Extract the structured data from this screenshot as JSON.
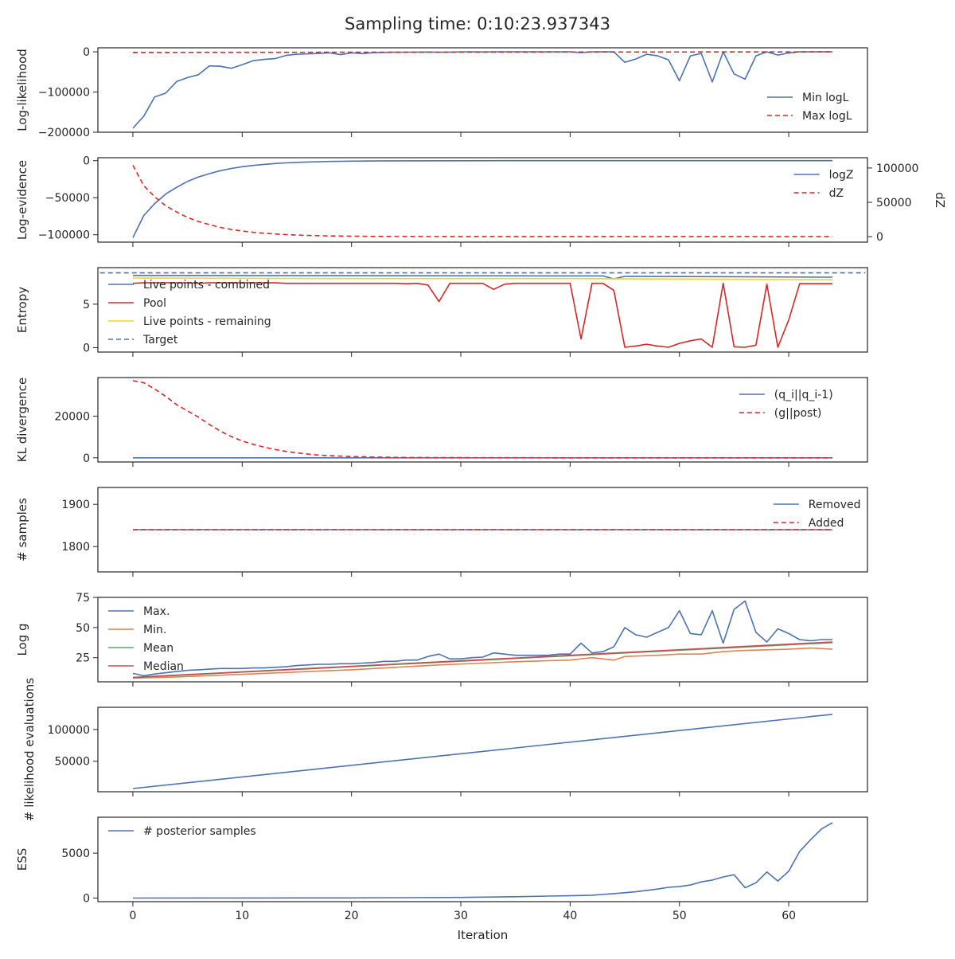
{
  "title": "Sampling time: 0:10:23.937343",
  "xlabel": "Iteration",
  "x_ticks": [
    0,
    10,
    20,
    30,
    40,
    50,
    60
  ],
  "colors": {
    "blue": "#4c72b0",
    "red": "#d62728",
    "orange": "#dd8452",
    "green": "#55a868",
    "crimson": "#c44e52",
    "gold": "#f0d22a"
  },
  "chart_data": [
    {
      "type": "line",
      "ylabel": "Log-likelihood",
      "ylim": [
        -200000,
        10000
      ],
      "yticks": [
        {
          "v": 0,
          "label": "0"
        },
        {
          "v": -100000,
          "label": "−100000"
        },
        {
          "v": -200000,
          "label": "−200000"
        }
      ],
      "legend_pos": "lower-right",
      "series": [
        {
          "name": "Min logL",
          "color": "#4c72b0",
          "dash": false,
          "x": [
            0,
            1,
            2,
            3,
            4,
            5,
            6,
            7,
            8,
            9,
            10,
            11,
            12,
            13,
            14,
            15,
            16,
            17,
            18,
            19,
            20,
            21,
            22,
            23,
            24,
            25,
            26,
            27,
            28,
            29,
            30,
            31,
            32,
            33,
            34,
            35,
            36,
            37,
            38,
            39,
            40,
            41,
            42,
            43,
            44,
            45,
            46,
            47,
            48,
            49,
            50,
            51,
            52,
            53,
            54,
            55,
            56,
            57,
            58,
            59,
            60,
            61,
            62,
            63,
            64
          ],
          "y": [
            -190000,
            -160000,
            -112000,
            -103000,
            -74000,
            -64000,
            -57000,
            -35000,
            -36000,
            -41000,
            -32000,
            -22000,
            -19000,
            -17000,
            -9000,
            -6000,
            -5000,
            -4000,
            -2500,
            -7000,
            -2500,
            -4500,
            -2000,
            -1500,
            -1000,
            -800,
            -600,
            -500,
            -1000,
            -600,
            -300,
            -200,
            -300,
            -200,
            -150,
            -100,
            -100,
            -100,
            -100,
            -100,
            -100,
            -2000,
            -100,
            -100,
            -100,
            -26000,
            -18000,
            -6000,
            -10000,
            -20000,
            -72000,
            -10000,
            -4000,
            -75000,
            -100,
            -55000,
            -68000,
            -10000,
            -100,
            -8000,
            -3000,
            -100,
            -100,
            -100,
            -100
          ]
        },
        {
          "name": "Max logL",
          "color": "#d62728",
          "dash": true,
          "x": [
            0,
            64
          ],
          "y": [
            -1500,
            -100
          ]
        }
      ]
    },
    {
      "type": "line",
      "ylabel": "Log-evidence",
      "ylabel_right": "dZ",
      "ylim": [
        -110000,
        4000
      ],
      "ylim_right": [
        -8000,
        115000
      ],
      "yticks": [
        {
          "v": 0,
          "label": "0"
        },
        {
          "v": -50000,
          "label": "−50000"
        },
        {
          "v": -100000,
          "label": "−100000"
        }
      ],
      "yticks_right": [
        {
          "v": 0,
          "label": "0"
        },
        {
          "v": 50000,
          "label": "50000"
        },
        {
          "v": 100000,
          "label": "100000"
        }
      ],
      "legend_pos": "upper-right",
      "series": [
        {
          "name": "logZ",
          "color": "#4c72b0",
          "dash": false,
          "axis": "left",
          "x": [
            0,
            1,
            2,
            3,
            4,
            5,
            6,
            7,
            8,
            9,
            10,
            11,
            12,
            13,
            14,
            15,
            16,
            18,
            20,
            22,
            25,
            30,
            35,
            40,
            45,
            50,
            55,
            60,
            64
          ],
          "y": [
            -104000,
            -74000,
            -58000,
            -45000,
            -36000,
            -28000,
            -22000,
            -17500,
            -13500,
            -10500,
            -8200,
            -6400,
            -5000,
            -3900,
            -3000,
            -2300,
            -1800,
            -1100,
            -650,
            -400,
            -200,
            -60,
            -20,
            -5,
            0,
            0,
            0,
            0,
            0
          ]
        },
        {
          "name": "dZ",
          "color": "#d62728",
          "dash": true,
          "axis": "right",
          "x": [
            0,
            1,
            2,
            3,
            4,
            5,
            6,
            7,
            8,
            9,
            10,
            11,
            12,
            13,
            14,
            15,
            16,
            18,
            20,
            22,
            25,
            30,
            35,
            40,
            45,
            50,
            55,
            60,
            64
          ],
          "y": [
            104000,
            74000,
            58000,
            45000,
            36000,
            28000,
            22000,
            17500,
            13500,
            10500,
            8200,
            6400,
            5000,
            3900,
            3000,
            2300,
            1800,
            1100,
            650,
            400,
            200,
            60,
            20,
            5,
            0,
            0,
            0,
            0,
            0
          ]
        }
      ]
    },
    {
      "type": "line",
      "ylabel": "Entropy",
      "ylim": [
        -0.5,
        9.2
      ],
      "yticks": [
        {
          "v": 0,
          "label": "0"
        },
        {
          "v": 5,
          "label": "5"
        }
      ],
      "legend_pos": "lower-left",
      "series": [
        {
          "name": "Live points - combined",
          "color": "#4c72b0",
          "dash": false,
          "x": [
            0,
            43,
            44,
            45,
            64
          ],
          "y": [
            8.3,
            8.25,
            7.9,
            8.2,
            8.1
          ]
        },
        {
          "name": "Pool",
          "color": "#d62728",
          "dash": false,
          "x": [
            0,
            1,
            2,
            3,
            4,
            5,
            6,
            7,
            8,
            9,
            10,
            11,
            12,
            13,
            14,
            15,
            16,
            17,
            18,
            19,
            20,
            21,
            22,
            23,
            24,
            25,
            26,
            27,
            28,
            29,
            30,
            31,
            32,
            33,
            34,
            35,
            36,
            37,
            38,
            39,
            40,
            41,
            42,
            43,
            44,
            45,
            46,
            47,
            48,
            49,
            50,
            51,
            52,
            53,
            54,
            55,
            56,
            57,
            58,
            59,
            60,
            61,
            62,
            63,
            64
          ],
          "y": [
            7.4,
            7.45,
            7.45,
            7.45,
            7.45,
            7.45,
            7.4,
            7.45,
            7.45,
            7.45,
            7.45,
            7.45,
            7.45,
            7.45,
            7.4,
            7.4,
            7.4,
            7.4,
            7.4,
            7.4,
            7.4,
            7.4,
            7.4,
            7.4,
            7.4,
            7.35,
            7.4,
            7.2,
            5.3,
            7.4,
            7.4,
            7.4,
            7.4,
            6.7,
            7.3,
            7.4,
            7.4,
            7.4,
            7.4,
            7.4,
            7.4,
            1.0,
            7.4,
            7.4,
            6.6,
            0.05,
            0.2,
            0.4,
            0.2,
            0.05,
            0.5,
            0.8,
            1.0,
            0.05,
            7.4,
            0.1,
            0.05,
            0.3,
            7.3,
            0.05,
            3.2,
            7.35,
            7.35,
            7.35,
            7.35
          ]
        },
        {
          "name": "Live points - remaining",
          "color": "#f0d22a",
          "dash": false,
          "x": [
            0,
            20,
            40,
            64
          ],
          "y": [
            8.0,
            7.95,
            7.95,
            7.8
          ]
        },
        {
          "name": "Target",
          "color": "#4c72b0",
          "dash": true,
          "x": [
            -3,
            67
          ],
          "y": [
            8.6,
            8.6
          ]
        }
      ]
    },
    {
      "type": "line",
      "ylabel": "KL divergence",
      "ylim": [
        -2000,
        38500
      ],
      "yticks": [
        {
          "v": 0,
          "label": "0"
        },
        {
          "v": 20000,
          "label": "20000"
        }
      ],
      "legend_pos": "upper-right",
      "series": [
        {
          "name": "(q_i||q_i-1)",
          "color": "#4c72b0",
          "dash": false,
          "x": [
            0,
            64
          ],
          "y": [
            0,
            0
          ]
        },
        {
          "name": "(g||post)",
          "color": "#d62728",
          "dash": true,
          "x": [
            0,
            1,
            2,
            3,
            4,
            5,
            6,
            7,
            8,
            9,
            10,
            11,
            12,
            13,
            14,
            15,
            16,
            17,
            18,
            20,
            22,
            25,
            30,
            35,
            40,
            45,
            50,
            55,
            60,
            64
          ],
          "y": [
            37000,
            36000,
            33000,
            29500,
            25500,
            22500,
            19500,
            16000,
            12800,
            10200,
            8100,
            6500,
            5100,
            4000,
            3100,
            2400,
            1800,
            1300,
            1000,
            600,
            350,
            150,
            50,
            10,
            0,
            0,
            0,
            0,
            0,
            0
          ]
        }
      ]
    },
    {
      "type": "line",
      "ylabel": "# samples",
      "ylim": [
        1740,
        1940
      ],
      "yticks": [
        {
          "v": 1900,
          "label": "1900"
        },
        {
          "v": 1800,
          "label": "1800"
        }
      ],
      "legend_pos": "upper-right",
      "series": [
        {
          "name": "Removed",
          "color": "#4c72b0",
          "dash": false,
          "x": [
            0,
            64
          ],
          "y": [
            1840,
            1840
          ]
        },
        {
          "name": "Added",
          "color": "#d62728",
          "dash": true,
          "x": [
            0,
            64
          ],
          "y": [
            1840,
            1840
          ]
        }
      ]
    },
    {
      "type": "line",
      "ylabel": "Log g",
      "ylim": [
        5,
        75
      ],
      "yticks": [
        {
          "v": 75,
          "label": "75"
        },
        {
          "v": 50,
          "label": "50"
        },
        {
          "v": 25,
          "label": "25"
        }
      ],
      "legend_pos": "upper-left",
      "series": [
        {
          "name": "Max.",
          "color": "#4c72b0",
          "dash": false,
          "x": [
            0,
            1,
            2,
            3,
            4,
            5,
            6,
            7,
            8,
            9,
            10,
            11,
            12,
            13,
            14,
            15,
            16,
            17,
            18,
            19,
            20,
            21,
            22,
            23,
            24,
            25,
            26,
            27,
            28,
            29,
            30,
            31,
            32,
            33,
            34,
            35,
            36,
            37,
            38,
            39,
            40,
            41,
            42,
            43,
            44,
            45,
            46,
            47,
            48,
            49,
            50,
            51,
            52,
            53,
            54,
            55,
            56,
            57,
            58,
            59,
            60,
            61,
            62,
            63,
            64
          ],
          "y": [
            12,
            10,
            11.5,
            12.5,
            13.5,
            14.5,
            15,
            15.5,
            16,
            16,
            16,
            16.5,
            16.5,
            17,
            17.5,
            18.5,
            19,
            19.5,
            19.5,
            20,
            20,
            20.5,
            21,
            22,
            22,
            23,
            23,
            26,
            28,
            24,
            24,
            25,
            25.5,
            29,
            28,
            27,
            27,
            27,
            27,
            28,
            28,
            37,
            29,
            30,
            34,
            50,
            44,
            42,
            46,
            50,
            64,
            45,
            44,
            64,
            37,
            65,
            72,
            46,
            38,
            49,
            45,
            40,
            39,
            40,
            40
          ]
        },
        {
          "name": "Min.",
          "color": "#dd8452",
          "dash": false,
          "x": [
            0,
            4,
            8,
            12,
            16,
            20,
            24,
            28,
            32,
            36,
            40,
            42,
            44,
            45,
            48,
            50,
            52,
            54,
            56,
            60,
            62,
            64
          ],
          "y": [
            8,
            9,
            10.5,
            12,
            13.5,
            15,
            17,
            19,
            20.5,
            22,
            23,
            25,
            23,
            26,
            27,
            28,
            28,
            30,
            31,
            32,
            33,
            32
          ]
        },
        {
          "name": "Mean",
          "color": "#55a868",
          "dash": false,
          "x": [
            0,
            64
          ],
          "y": [
            8.5,
            37.5
          ]
        },
        {
          "name": "Median",
          "color": "#c44e52",
          "dash": false,
          "x": [
            0,
            64
          ],
          "y": [
            8.7,
            38
          ]
        }
      ]
    },
    {
      "type": "line",
      "ylabel": "# likelihood evaluations",
      "ylim": [
        2000,
        135000
      ],
      "yticks": [
        {
          "v": 100000,
          "label": "100000"
        },
        {
          "v": 50000,
          "label": "50000"
        }
      ],
      "legend_pos": "none",
      "series": [
        {
          "name": "",
          "color": "#4c72b0",
          "dash": false,
          "x": [
            0,
            64
          ],
          "y": [
            7000,
            124000
          ]
        }
      ]
    },
    {
      "type": "line",
      "ylabel": "ESS",
      "ylim": [
        -400,
        9000
      ],
      "yticks": [
        {
          "v": 5000,
          "label": "5000"
        },
        {
          "v": 0,
          "label": "0"
        }
      ],
      "legend_pos": "upper-left",
      "series": [
        {
          "name": "# posterior samples",
          "color": "#4c72b0",
          "dash": false,
          "x": [
            0,
            10,
            20,
            25,
            30,
            35,
            38,
            40,
            42,
            44,
            46,
            48,
            49,
            50,
            51,
            52,
            53,
            54,
            55,
            56,
            57,
            58,
            59,
            60,
            61,
            62,
            63,
            64
          ],
          "y": [
            0,
            5,
            20,
            40,
            70,
            150,
            220,
            260,
            320,
            500,
            700,
            1000,
            1200,
            1280,
            1450,
            1800,
            2000,
            2350,
            2600,
            1150,
            1700,
            2900,
            1900,
            3000,
            5200,
            6500,
            7700,
            8400
          ]
        }
      ]
    }
  ]
}
